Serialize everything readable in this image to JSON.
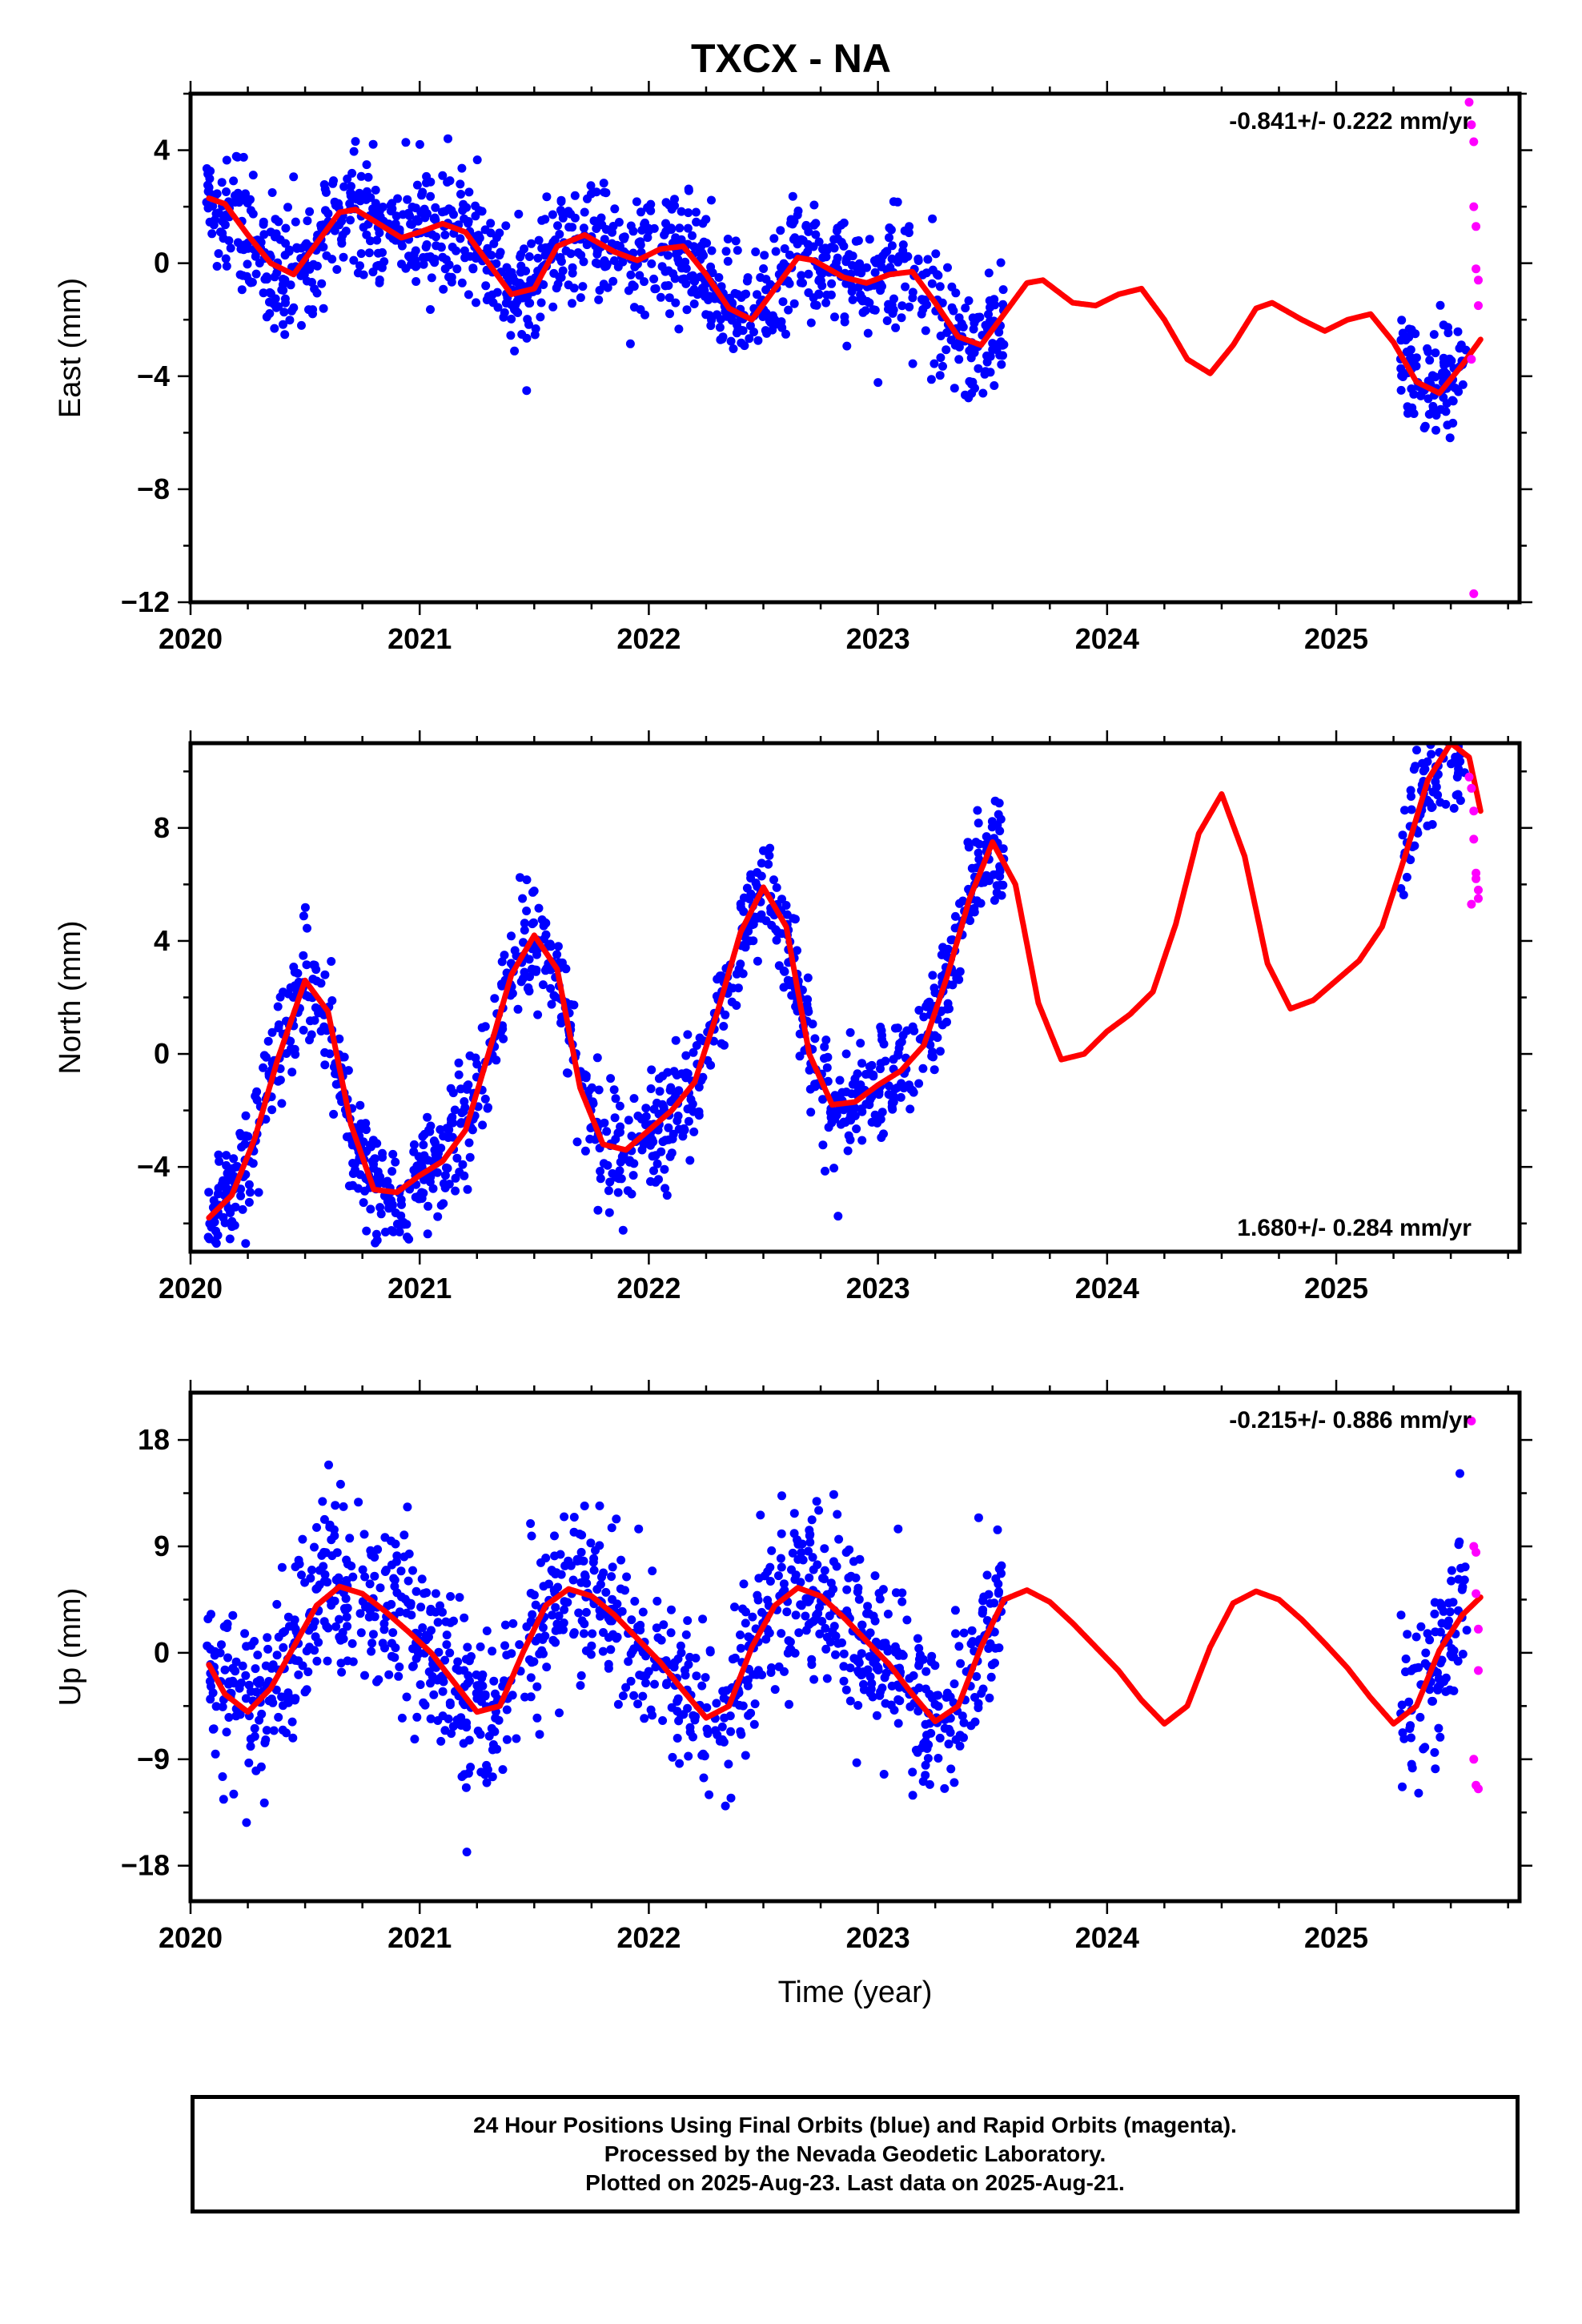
{
  "title": "TXCX - NA",
  "footer": {
    "line1": "24 Hour Positions Using Final Orbits (blue) and Rapid Orbits (magenta).",
    "line2": "Processed by the Nevada Geodetic Laboratory.",
    "line3": "Plotted on 2025-Aug-23. Last data on 2025-Aug-21."
  },
  "colors": {
    "final": "#0000ff",
    "rapid": "#ff00ff",
    "model": "#ff0000"
  },
  "chart_data": [
    {
      "type": "scatter",
      "ylabel": "East (mm)",
      "xlabel": "",
      "rate_label": "-0.841+/- 0.222 mm/yr",
      "rate_position": "top-right",
      "xlim": [
        2020.0,
        2025.8
      ],
      "ylim": [
        -12,
        6
      ],
      "yticks": [
        -12,
        -8,
        -4,
        0,
        4
      ],
      "ytick_labels": [
        "−12",
        "−8",
        "−4",
        "0",
        "4"
      ],
      "xticks": [
        2020,
        2021,
        2022,
        2023,
        2024,
        2025
      ],
      "model_curve": {
        "x": [
          2020.08,
          2020.15,
          2020.25,
          2020.35,
          2020.45,
          2020.55,
          2020.65,
          2020.72,
          2020.82,
          2020.92,
          2021.0,
          2021.1,
          2021.2,
          2021.3,
          2021.4,
          2021.5,
          2021.6,
          2021.72,
          2021.85,
          2021.95,
          2022.05,
          2022.15,
          2022.25,
          2022.35,
          2022.45,
          2022.55,
          2022.65,
          2022.72,
          2022.85,
          2022.95,
          2023.05,
          2023.15,
          2023.25,
          2023.35,
          2023.45,
          2023.55,
          2023.65,
          2023.72,
          2023.85,
          2023.95,
          2024.05,
          2024.15,
          2024.25,
          2024.35,
          2024.45,
          2024.55,
          2024.65,
          2024.72,
          2024.85,
          2024.95,
          2025.05,
          2025.15,
          2025.25,
          2025.35,
          2025.45,
          2025.55,
          2025.63
        ],
        "y": [
          2.3,
          2.1,
          1.0,
          0.0,
          -0.4,
          0.7,
          1.8,
          1.9,
          1.4,
          0.9,
          1.1,
          1.4,
          1.1,
          0.0,
          -1.1,
          -0.9,
          0.6,
          1.0,
          0.4,
          0.1,
          0.5,
          0.6,
          -0.4,
          -1.6,
          -2.0,
          -0.9,
          0.2,
          0.1,
          -0.5,
          -0.7,
          -0.4,
          -0.3,
          -1.4,
          -2.6,
          -2.9,
          -1.8,
          -0.7,
          -0.6,
          -1.4,
          -1.5,
          -1.1,
          -0.9,
          -2.0,
          -3.4,
          -3.9,
          -2.9,
          -1.6,
          -1.4,
          -2.0,
          -2.4,
          -2.0,
          -1.8,
          -2.8,
          -4.2,
          -4.6,
          -3.6,
          -2.7
        ]
      },
      "final_segments": [
        [
          2020.07,
          2023.55
        ],
        [
          2025.28,
          2025.57
        ]
      ],
      "rapid_points": {
        "x": [
          2025.58,
          2025.59,
          2025.6,
          2025.6,
          2025.61,
          2025.61,
          2025.62,
          2025.62,
          2025.59,
          2025.6
        ],
        "y": [
          5.7,
          4.9,
          4.3,
          2.0,
          1.3,
          -0.2,
          -0.6,
          -1.5,
          -3.4,
          -11.7
        ]
      }
    },
    {
      "type": "scatter",
      "ylabel": "North (mm)",
      "xlabel": "",
      "rate_label": "1.680+/- 0.284 mm/yr",
      "rate_position": "bottom-right",
      "xlim": [
        2020.0,
        2025.8
      ],
      "ylim": [
        -7,
        11
      ],
      "yticks": [
        -4,
        0,
        4,
        8
      ],
      "ytick_labels": [
        "−4",
        "0",
        "4",
        "8"
      ],
      "xticks": [
        2020,
        2021,
        2022,
        2023,
        2024,
        2025
      ],
      "model_curve": {
        "x": [
          2020.08,
          2020.18,
          2020.28,
          2020.38,
          2020.5,
          2020.6,
          2020.7,
          2020.8,
          2020.9,
          2021.0,
          2021.1,
          2021.2,
          2021.3,
          2021.4,
          2021.5,
          2021.6,
          2021.7,
          2021.8,
          2021.9,
          2022.0,
          2022.1,
          2022.2,
          2022.3,
          2022.4,
          2022.5,
          2022.6,
          2022.7,
          2022.8,
          2022.9,
          2023.0,
          2023.1,
          2023.2,
          2023.3,
          2023.4,
          2023.5,
          2023.6,
          2023.7,
          2023.8,
          2023.9,
          2024.0,
          2024.1,
          2024.2,
          2024.3,
          2024.4,
          2024.5,
          2024.6,
          2024.7,
          2024.8,
          2024.9,
          2025.0,
          2025.1,
          2025.2,
          2025.3,
          2025.4,
          2025.5,
          2025.58,
          2025.63
        ],
        "y": [
          -5.8,
          -5.0,
          -3.0,
          -0.2,
          2.6,
          1.5,
          -2.5,
          -4.8,
          -4.9,
          -4.3,
          -3.8,
          -2.7,
          0.0,
          2.8,
          4.2,
          3.0,
          -1.2,
          -3.2,
          -3.4,
          -2.7,
          -2.0,
          -1.0,
          1.5,
          4.3,
          5.9,
          4.5,
          0.0,
          -1.8,
          -1.7,
          -1.1,
          -0.6,
          0.3,
          2.7,
          5.5,
          7.5,
          6.0,
          1.8,
          -0.2,
          0.0,
          0.8,
          1.4,
          2.2,
          4.6,
          7.8,
          9.2,
          7.0,
          3.2,
          1.6,
          1.9,
          2.6,
          3.3,
          4.5,
          7.0,
          9.7,
          11.0,
          10.5,
          8.6
        ]
      },
      "final_segments": [
        [
          2020.07,
          2023.55
        ],
        [
          2025.28,
          2025.57
        ]
      ],
      "rapid_points": {
        "x": [
          2025.58,
          2025.59,
          2025.6,
          2025.6,
          2025.61,
          2025.61,
          2025.62,
          2025.62,
          2025.59
        ],
        "y": [
          9.8,
          9.4,
          8.6,
          7.6,
          6.4,
          6.2,
          5.8,
          5.5,
          5.3
        ]
      }
    },
    {
      "type": "scatter",
      "ylabel": "Up (mm)",
      "xlabel": "Time (year)",
      "rate_label": "-0.215+/- 0.886 mm/yr",
      "rate_position": "top-right",
      "xlim": [
        2020.0,
        2025.8
      ],
      "ylim": [
        -21,
        22
      ],
      "yticks": [
        -18,
        -9,
        0,
        9,
        18
      ],
      "ytick_labels": [
        "−18",
        "−9",
        "0",
        "9",
        "18"
      ],
      "xticks": [
        2020,
        2021,
        2022,
        2023,
        2024,
        2025
      ],
      "model_curve": {
        "x": [
          2020.08,
          2020.15,
          2020.25,
          2020.35,
          2020.45,
          2020.55,
          2020.65,
          2020.75,
          2020.85,
          2020.95,
          2021.05,
          2021.15,
          2021.25,
          2021.35,
          2021.45,
          2021.55,
          2021.65,
          2021.75,
          2021.85,
          2021.95,
          2022.05,
          2022.15,
          2022.25,
          2022.35,
          2022.45,
          2022.55,
          2022.65,
          2022.75,
          2022.85,
          2022.95,
          2023.05,
          2023.15,
          2023.25,
          2023.35,
          2023.45,
          2023.55,
          2023.65,
          2023.75,
          2023.85,
          2023.95,
          2024.05,
          2024.15,
          2024.25,
          2024.35,
          2024.45,
          2024.55,
          2024.65,
          2024.75,
          2024.85,
          2024.95,
          2025.05,
          2025.15,
          2025.25,
          2025.35,
          2025.45,
          2025.55,
          2025.63
        ],
        "y": [
          -1.0,
          -3.5,
          -5.0,
          -3.0,
          0.5,
          4.0,
          5.6,
          5.0,
          3.5,
          1.8,
          0.0,
          -2.5,
          -5.0,
          -4.5,
          0.0,
          4.0,
          5.4,
          4.8,
          3.2,
          1.2,
          -0.8,
          -3.2,
          -5.5,
          -4.5,
          0.5,
          4.0,
          5.5,
          4.8,
          3.0,
          1.0,
          -1.0,
          -3.5,
          -5.8,
          -4.5,
          0.5,
          4.5,
          5.3,
          4.3,
          2.5,
          0.5,
          -1.5,
          -4.0,
          -6.0,
          -4.5,
          0.5,
          4.2,
          5.2,
          4.5,
          2.8,
          0.8,
          -1.3,
          -3.8,
          -6.0,
          -4.5,
          0.2,
          3.2,
          4.7
        ]
      },
      "final_segments": [
        [
          2020.07,
          2023.55
        ],
        [
          2025.28,
          2025.57
        ]
      ],
      "rapid_points": {
        "x": [
          2025.59,
          2025.6,
          2025.61,
          2025.61,
          2025.62,
          2025.62,
          2025.6,
          2025.61,
          2025.62
        ],
        "y": [
          19.6,
          9.0,
          8.5,
          5.0,
          2.0,
          -1.5,
          -9.0,
          -11.2,
          -11.5
        ]
      }
    }
  ]
}
